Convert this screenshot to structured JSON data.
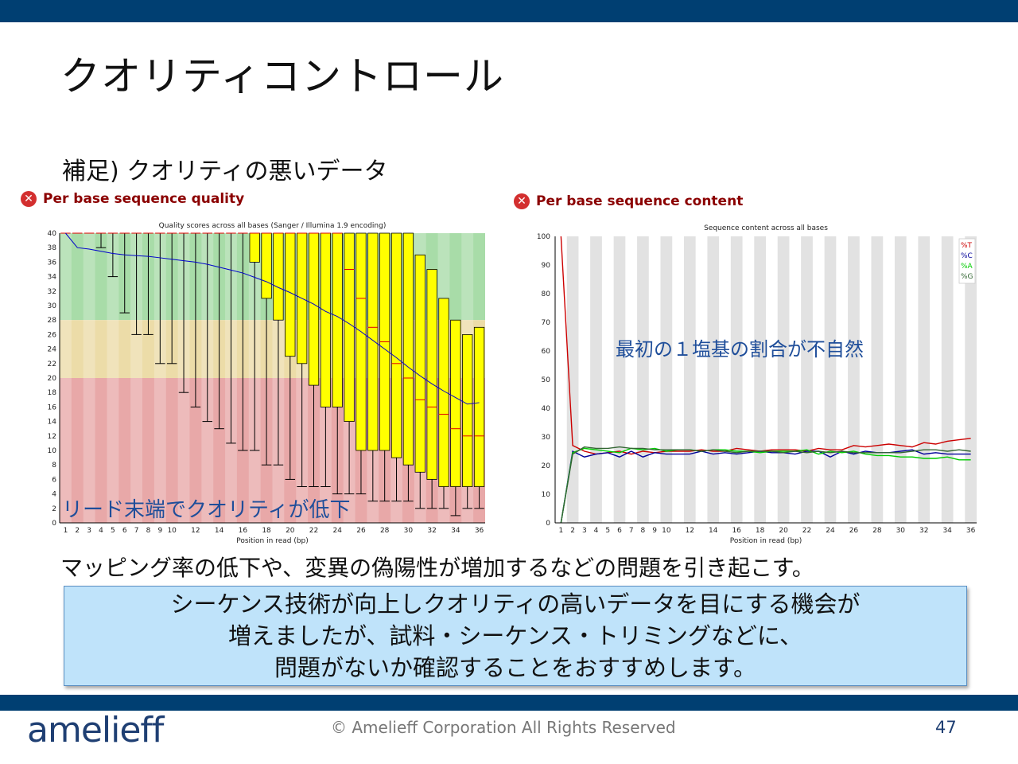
{
  "slide": {
    "title": "クオリティコントロール",
    "subtitle": "補足) クオリティの悪いデータ",
    "caption": "マッピング率の低下や、変異の偽陽性が増加するなどの問題を引き起こす。",
    "note_lines": [
      "シーケンス技術が向上しクオリティの高いデータを目にする機会が",
      "増えましたが、試料・シーケンス・トリミングなどに、",
      "問題がないか確認することをおすすめします。"
    ],
    "logo": "amelieff",
    "copyright": "© Amelieff Corporation All Rights Reserved",
    "page_number": "47",
    "status_icon": "error-x-icon",
    "colors": {
      "bar": "#003f72",
      "note_bg": "#bfe3fa",
      "panel_title": "#8b0000"
    }
  },
  "chart_data": [
    {
      "type": "boxplot",
      "panel_title": "Per base sequence quality",
      "title": "Quality scores across all bases (Sanger / Illumina 1.9 encoding)",
      "xlabel": "Position in read (bp)",
      "ylabel": "",
      "ylim": [
        0,
        40
      ],
      "yticks": [
        0,
        2,
        4,
        6,
        8,
        10,
        12,
        14,
        16,
        18,
        20,
        22,
        24,
        26,
        28,
        30,
        32,
        34,
        36,
        38,
        40
      ],
      "positions": [
        1,
        2,
        3,
        4,
        5,
        6,
        7,
        8,
        9,
        10,
        11,
        12,
        13,
        14,
        15,
        16,
        17,
        18,
        19,
        20,
        21,
        22,
        23,
        24,
        25,
        26,
        27,
        28,
        29,
        30,
        31,
        32,
        33,
        34,
        35,
        36
      ],
      "xtick_labels": [
        "1",
        "2",
        "3",
        "4",
        "5",
        "6",
        "7",
        "8",
        "9",
        "10",
        "12",
        "14",
        "16",
        "18",
        "20",
        "22",
        "24",
        "26",
        "28",
        "30",
        "32",
        "34",
        "36"
      ],
      "zones": [
        {
          "from": 28,
          "to": 40,
          "name": "good",
          "color": "#a8dca8"
        },
        {
          "from": 20,
          "to": 28,
          "name": "reasonable",
          "color": "#ecdca8"
        },
        {
          "from": 0,
          "to": 20,
          "name": "poor",
          "color": "#e8a8a8"
        }
      ],
      "mean_line": [
        40,
        38,
        37.8,
        37.5,
        37.2,
        37,
        36.9,
        36.8,
        36.6,
        36.4,
        36.2,
        36,
        35.7,
        35.3,
        34.9,
        34.5,
        33.9,
        33.3,
        32.5,
        31.8,
        31,
        30.2,
        29.2,
        28.5,
        27.5,
        26.4,
        25.2,
        24,
        22.8,
        21.5,
        20.3,
        19.2,
        18.2,
        17.3,
        16.4,
        16.6
      ],
      "whisker_low": [
        40,
        40,
        40,
        38,
        34,
        29,
        26,
        26,
        22,
        22,
        18,
        16,
        14,
        13,
        11,
        10,
        10,
        8,
        8,
        6,
        5,
        5,
        5,
        4,
        4,
        4,
        3,
        3,
        3,
        3,
        2,
        2,
        2,
        1,
        2,
        2
      ],
      "box_lower": [
        40,
        40,
        40,
        40,
        40,
        40,
        40,
        40,
        40,
        40,
        40,
        40,
        40,
        40,
        40,
        40,
        36,
        31,
        28,
        23,
        22,
        19,
        16,
        16,
        14,
        10,
        10,
        10,
        9,
        8,
        7,
        6,
        5,
        5,
        5,
        5
      ],
      "box_upper": [
        40,
        40,
        40,
        40,
        40,
        40,
        40,
        40,
        40,
        40,
        40,
        40,
        40,
        40,
        40,
        40,
        40,
        40,
        40,
        40,
        40,
        40,
        40,
        40,
        40,
        40,
        40,
        40,
        40,
        40,
        37,
        35,
        31,
        28,
        26,
        27
      ],
      "median": [
        40,
        40,
        40,
        40,
        40,
        40,
        40,
        40,
        40,
        40,
        40,
        40,
        40,
        40,
        40,
        40,
        40,
        40,
        40,
        40,
        40,
        40,
        40,
        40,
        35,
        31,
        27,
        25,
        22,
        20,
        17,
        16,
        15,
        13,
        12,
        12
      ],
      "annotation": "リード末端でクオリティが低下"
    },
    {
      "type": "line",
      "panel_title": "Per base sequence content",
      "title": "Sequence content across all bases",
      "xlabel": "Position in read (bp)",
      "ylabel": "",
      "ylim": [
        0,
        100
      ],
      "yticks": [
        0,
        10,
        20,
        30,
        40,
        50,
        60,
        70,
        80,
        90,
        100
      ],
      "x": [
        1,
        2,
        3,
        4,
        5,
        6,
        7,
        8,
        9,
        10,
        11,
        12,
        13,
        14,
        15,
        16,
        17,
        18,
        19,
        20,
        21,
        22,
        23,
        24,
        25,
        26,
        27,
        28,
        29,
        30,
        31,
        32,
        33,
        34,
        35,
        36
      ],
      "xtick_labels": [
        "1",
        "2",
        "3",
        "4",
        "5",
        "6",
        "7",
        "8",
        "9",
        "10",
        "12",
        "14",
        "16",
        "18",
        "20",
        "22",
        "24",
        "26",
        "28",
        "30",
        "32",
        "34",
        "36"
      ],
      "series": [
        {
          "name": "%T",
          "color": "#cc0000",
          "values": [
            100,
            27,
            25,
            24,
            24.5,
            25,
            24,
            25,
            24.5,
            25,
            25,
            25,
            25.5,
            25,
            25,
            26,
            25.5,
            25,
            25.5,
            25.5,
            25.5,
            25,
            26,
            25.5,
            25.5,
            27,
            26.5,
            27,
            27.5,
            27,
            26.5,
            28,
            27.5,
            28.5,
            29,
            29.5
          ]
        },
        {
          "name": "%C",
          "color": "#000099",
          "values": [
            0,
            25,
            23,
            24,
            24.5,
            23,
            25,
            23,
            24.5,
            24,
            24,
            24,
            25,
            24,
            24.5,
            24,
            24.5,
            25,
            24.5,
            24.5,
            24,
            25,
            25,
            23,
            25,
            24,
            25,
            24.5,
            24.5,
            25,
            25.5,
            24,
            24.5,
            24,
            24,
            24
          ]
        },
        {
          "name": "%A",
          "color": "#00cc00",
          "values": [
            0,
            24.5,
            26,
            25.5,
            25,
            24.5,
            26,
            25.5,
            26,
            25,
            25.5,
            25.5,
            25,
            25.5,
            25.5,
            25,
            25,
            24.5,
            25,
            25,
            25,
            25.5,
            24,
            25,
            24.5,
            25,
            24,
            23.5,
            23.5,
            23,
            23,
            22.5,
            22.5,
            23,
            22,
            22
          ]
        },
        {
          "name": "%G",
          "color": "#336633",
          "values": [
            0,
            24,
            26.5,
            26,
            26,
            26.5,
            26,
            26,
            25.5,
            25.5,
            25.5,
            25.5,
            25,
            25.5,
            25,
            24.5,
            25,
            25,
            25,
            24.5,
            25,
            24.5,
            25,
            24.5,
            25,
            24.5,
            24.5,
            24.5,
            24.5,
            24.5,
            25,
            25.5,
            25.5,
            25,
            25.5,
            25
          ]
        }
      ],
      "annotation": "最初の１塩基の割合が不自然"
    }
  ]
}
